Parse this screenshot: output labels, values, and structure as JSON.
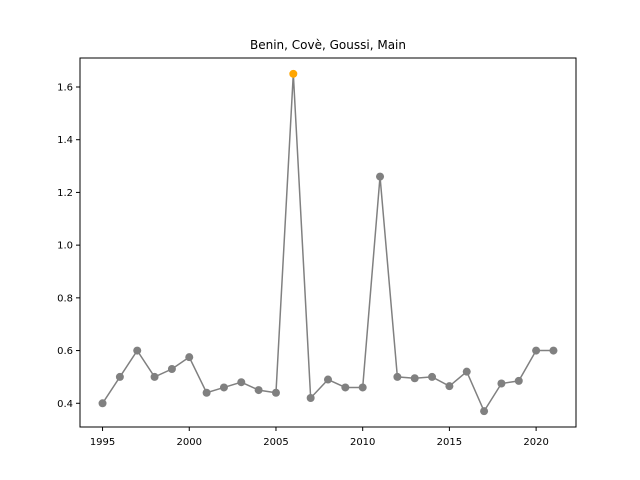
{
  "chart_data": {
    "type": "line",
    "title": "Benin, Covè, Goussi, Main",
    "xlabel": "",
    "ylabel": "",
    "xlim": [
      1993.7,
      2022.3
    ],
    "ylim": [
      0.31,
      1.71
    ],
    "xticks": [
      1995,
      2000,
      2005,
      2010,
      2015,
      2020
    ],
    "xtick_labels": [
      "1995",
      "2000",
      "2005",
      "2010",
      "2015",
      "2020"
    ],
    "yticks": [
      0.4,
      0.6,
      0.8,
      1.0,
      1.2,
      1.4,
      1.6
    ],
    "ytick_labels": [
      "0.4",
      "0.6",
      "0.8",
      "1.0",
      "1.2",
      "1.4",
      "1.6"
    ],
    "grid": false,
    "line_color": "#808080",
    "highlight_color": "#FFA500",
    "series": [
      {
        "x": [
          1995,
          1996,
          1997,
          1998,
          1999,
          2000,
          2001,
          2002,
          2003,
          2004,
          2005,
          2006,
          2007,
          2008,
          2009,
          2010,
          2011,
          2012,
          2013,
          2014,
          2015,
          2016,
          2017,
          2018,
          2019,
          2020,
          2021
        ],
        "y": [
          0.4,
          0.5,
          0.6,
          0.5,
          0.53,
          0.575,
          0.44,
          0.46,
          0.48,
          0.45,
          0.44,
          1.65,
          0.42,
          0.49,
          0.46,
          0.46,
          1.26,
          0.5,
          0.495,
          0.5,
          0.465,
          0.52,
          0.37,
          0.475,
          0.485,
          0.6,
          0.6
        ],
        "highlight_index": 11
      }
    ]
  }
}
